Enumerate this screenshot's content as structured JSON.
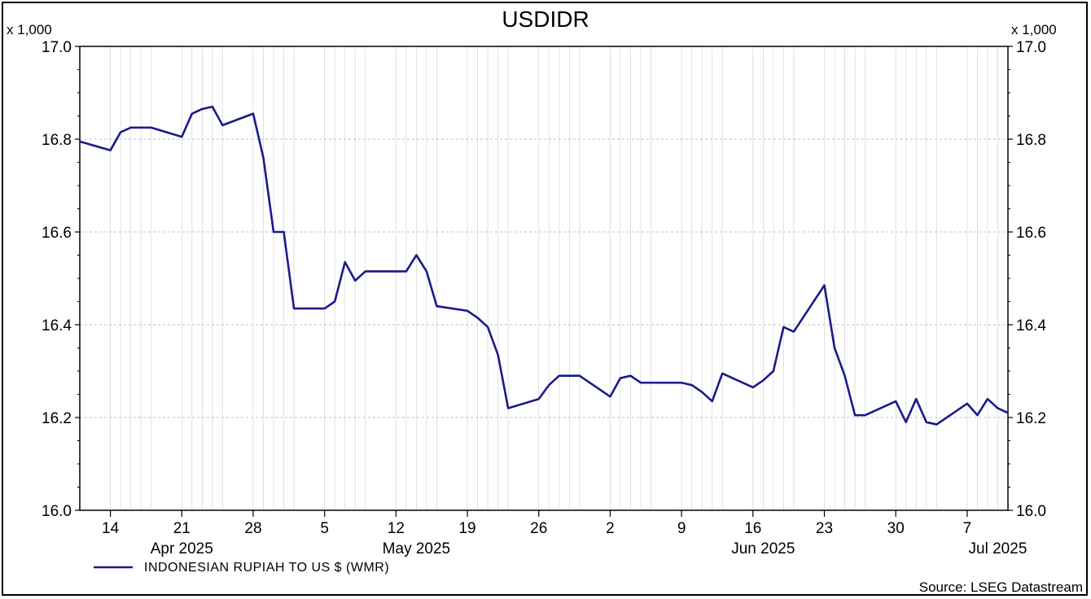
{
  "chart_data": {
    "type": "line",
    "title": "USDIDR",
    "y_multiplier_label": "x 1,000",
    "ylim": [
      16.0,
      17.0
    ],
    "y_ticks": [
      16.0,
      16.2,
      16.4,
      16.6,
      16.8,
      17.0
    ],
    "y_tick_labels": [
      "16.0",
      "16.2",
      "16.4",
      "16.6",
      "16.8",
      "17.0"
    ],
    "grid": true,
    "x_day_ticks": [
      {
        "date": "2025-04-14",
        "label": "14"
      },
      {
        "date": "2025-04-21",
        "label": "21"
      },
      {
        "date": "2025-04-28",
        "label": "28"
      },
      {
        "date": "2025-05-05",
        "label": "5"
      },
      {
        "date": "2025-05-12",
        "label": "12"
      },
      {
        "date": "2025-05-19",
        "label": "19"
      },
      {
        "date": "2025-05-26",
        "label": "26"
      },
      {
        "date": "2025-06-02",
        "label": "2"
      },
      {
        "date": "2025-06-09",
        "label": "9"
      },
      {
        "date": "2025-06-16",
        "label": "16"
      },
      {
        "date": "2025-06-23",
        "label": "23"
      },
      {
        "date": "2025-06-30",
        "label": "30"
      },
      {
        "date": "2025-07-07",
        "label": "7"
      }
    ],
    "x_month_labels": [
      {
        "date": "2025-04-21",
        "label": "Apr 2025"
      },
      {
        "date": "2025-05-14",
        "label": "May 2025"
      },
      {
        "date": "2025-06-17",
        "label": "Jun 2025"
      },
      {
        "date": "2025-07-10",
        "label": "Jul 2025"
      }
    ],
    "series": [
      {
        "name": "INDONESIAN RUPIAH TO US $ (WMR)",
        "color": "#1a1a8c",
        "points": [
          [
            "2025-04-11",
            16.795
          ],
          [
            "2025-04-14",
            16.776
          ],
          [
            "2025-04-15",
            16.815
          ],
          [
            "2025-04-16",
            16.825
          ],
          [
            "2025-04-17",
            16.825
          ],
          [
            "2025-04-18",
            16.825
          ],
          [
            "2025-04-21",
            16.805
          ],
          [
            "2025-04-22",
            16.855
          ],
          [
            "2025-04-23",
            16.865
          ],
          [
            "2025-04-24",
            16.87
          ],
          [
            "2025-04-25",
            16.83
          ],
          [
            "2025-04-28",
            16.855
          ],
          [
            "2025-04-29",
            16.76
          ],
          [
            "2025-04-30",
            16.6
          ],
          [
            "2025-05-01",
            16.6
          ],
          [
            "2025-05-02",
            16.435
          ],
          [
            "2025-05-05",
            16.435
          ],
          [
            "2025-05-06",
            16.45
          ],
          [
            "2025-05-07",
            16.535
          ],
          [
            "2025-05-08",
            16.495
          ],
          [
            "2025-05-09",
            16.515
          ],
          [
            "2025-05-12",
            16.515
          ],
          [
            "2025-05-13",
            16.515
          ],
          [
            "2025-05-14",
            16.55
          ],
          [
            "2025-05-15",
            16.515
          ],
          [
            "2025-05-16",
            16.44
          ],
          [
            "2025-05-19",
            16.43
          ],
          [
            "2025-05-20",
            16.415
          ],
          [
            "2025-05-21",
            16.395
          ],
          [
            "2025-05-22",
            16.335
          ],
          [
            "2025-05-23",
            16.22
          ],
          [
            "2025-05-26",
            16.24
          ],
          [
            "2025-05-27",
            16.27
          ],
          [
            "2025-05-28",
            16.29
          ],
          [
            "2025-05-29",
            16.29
          ],
          [
            "2025-05-30",
            16.29
          ],
          [
            "2025-06-02",
            16.245
          ],
          [
            "2025-06-03",
            16.285
          ],
          [
            "2025-06-04",
            16.29
          ],
          [
            "2025-06-05",
            16.275
          ],
          [
            "2025-06-06",
            16.275
          ],
          [
            "2025-06-09",
            16.275
          ],
          [
            "2025-06-10",
            16.27
          ],
          [
            "2025-06-11",
            16.255
          ],
          [
            "2025-06-12",
            16.235
          ],
          [
            "2025-06-13",
            16.295
          ],
          [
            "2025-06-16",
            16.265
          ],
          [
            "2025-06-17",
            16.28
          ],
          [
            "2025-06-18",
            16.3
          ],
          [
            "2025-06-19",
            16.395
          ],
          [
            "2025-06-20",
            16.385
          ],
          [
            "2025-06-23",
            16.485
          ],
          [
            "2025-06-24",
            16.35
          ],
          [
            "2025-06-25",
            16.29
          ],
          [
            "2025-06-26",
            16.205
          ],
          [
            "2025-06-27",
            16.205
          ],
          [
            "2025-06-30",
            16.235
          ],
          [
            "2025-07-01",
            16.19
          ],
          [
            "2025-07-02",
            16.24
          ],
          [
            "2025-07-03",
            16.19
          ],
          [
            "2025-07-04",
            16.185
          ],
          [
            "2025-07-07",
            16.23
          ],
          [
            "2025-07-08",
            16.205
          ],
          [
            "2025-07-09",
            16.24
          ],
          [
            "2025-07-10",
            16.22
          ],
          [
            "2025-07-11",
            16.21
          ]
        ]
      }
    ],
    "legend": {
      "position": "bottom-left",
      "label": "INDONESIAN RUPIAH TO US $ (WMR)"
    },
    "source": "Source: LSEG Datastream"
  }
}
